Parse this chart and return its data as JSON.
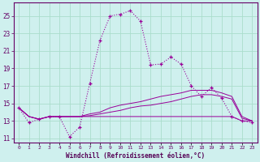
{
  "xlabel": "Windchill (Refroidissement éolien,°C)",
  "bg_color": "#cff0ee",
  "grid_color": "#aaddcc",
  "line_color": "#990099",
  "x_hours": [
    0,
    1,
    2,
    3,
    4,
    5,
    6,
    7,
    8,
    9,
    10,
    11,
    12,
    13,
    14,
    15,
    16,
    17,
    18,
    19,
    20,
    21,
    22,
    23
  ],
  "main_line": [
    14.5,
    12.8,
    13.2,
    13.5,
    13.5,
    11.2,
    12.3,
    17.3,
    22.2,
    25.0,
    25.2,
    25.6,
    24.4,
    19.4,
    19.5,
    20.3,
    19.5,
    17.0,
    15.8,
    16.8,
    15.6,
    13.5,
    13.0,
    12.8
  ],
  "line2": [
    14.5,
    13.5,
    13.2,
    13.5,
    13.5,
    13.5,
    13.5,
    13.8,
    14.0,
    14.5,
    14.8,
    15.0,
    15.2,
    15.5,
    15.8,
    16.0,
    16.2,
    16.5,
    16.5,
    16.5,
    16.2,
    15.8,
    13.5,
    13.0
  ],
  "line3": [
    14.5,
    13.5,
    13.2,
    13.5,
    13.5,
    13.5,
    13.5,
    13.6,
    13.8,
    14.0,
    14.2,
    14.5,
    14.7,
    14.8,
    15.0,
    15.2,
    15.5,
    15.8,
    16.0,
    16.0,
    15.8,
    15.5,
    13.3,
    13.0
  ],
  "line4": [
    14.5,
    13.5,
    13.2,
    13.5,
    13.5,
    13.5,
    13.5,
    13.5,
    13.5,
    13.5,
    13.5,
    13.5,
    13.5,
    13.5,
    13.5,
    13.5,
    13.5,
    13.5,
    13.5,
    13.5,
    13.5,
    13.5,
    13.0,
    13.0
  ],
  "ylim": [
    10.5,
    26.5
  ],
  "yticks": [
    11,
    13,
    15,
    17,
    19,
    21,
    23,
    25
  ],
  "xtick_labels": [
    "0",
    "1",
    "2",
    "3",
    "4",
    "5",
    "6",
    "7",
    "8",
    "9",
    "10",
    "11",
    "12",
    "13",
    "14",
    "15",
    "16",
    "17",
    "18",
    "19",
    "20",
    "21",
    "22",
    "23"
  ]
}
